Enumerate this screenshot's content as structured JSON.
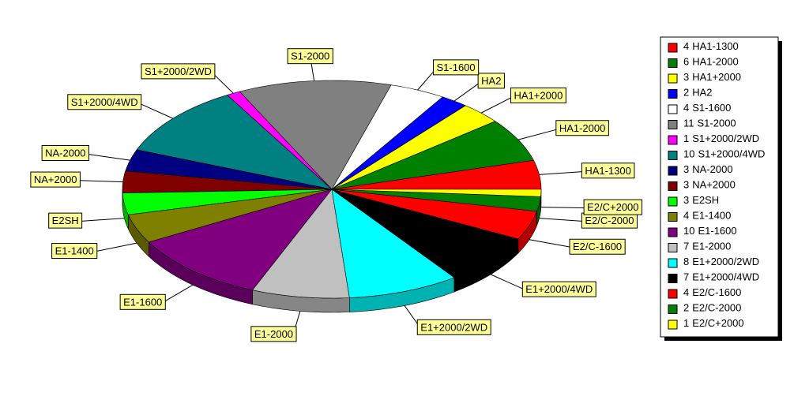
{
  "chart_data": {
    "type": "pie3d",
    "categories": [
      "HA1-1300",
      "HA1-2000",
      "HA1+2000",
      "HA2",
      "S1-1600",
      "S1-2000",
      "S1+2000/2WD",
      "S1+2000/4WD",
      "NA-2000",
      "NA+2000",
      "E2SH",
      "E1-1400",
      "E1-1600",
      "E1-2000",
      "E1+2000/2WD",
      "E1+2000/4WD",
      "E2/C-1600",
      "E2/C-2000",
      "E2/C+2000"
    ],
    "values": [
      4,
      6,
      3,
      2,
      4,
      11,
      1,
      10,
      3,
      3,
      3,
      4,
      10,
      7,
      8,
      7,
      4,
      2,
      1
    ],
    "colors": [
      "#ff0000",
      "#008000",
      "#ffff00",
      "#0000ff",
      "#ffffff",
      "#808080",
      "#ff00ff",
      "#008080",
      "#000080",
      "#800000",
      "#00ff00",
      "#808000",
      "#800080",
      "#c0c0c0",
      "#00ffff",
      "#000000",
      "#ff0000",
      "#008000",
      "#ffff00"
    ]
  }
}
